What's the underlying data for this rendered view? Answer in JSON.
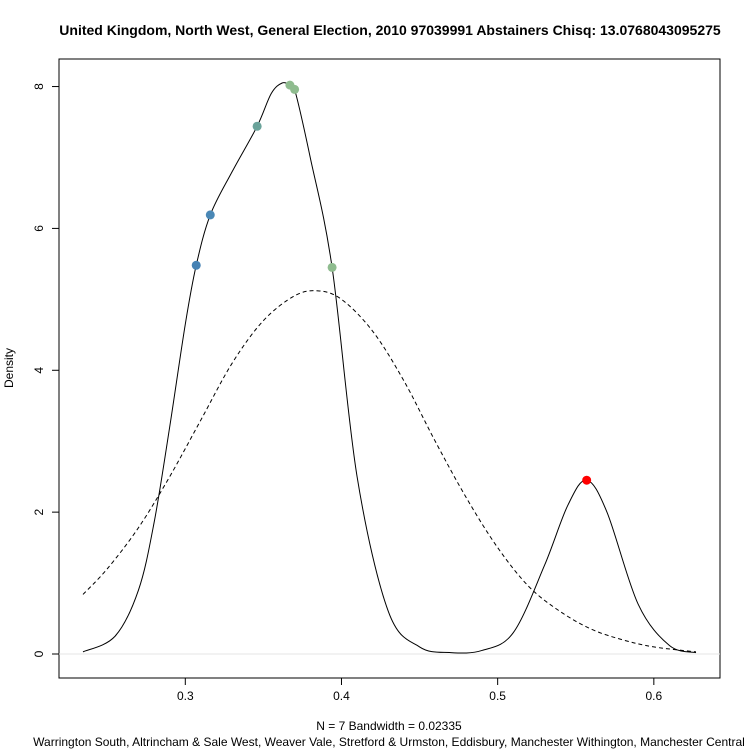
{
  "chart_data": {
    "type": "line",
    "title": "United Kingdom, North West, General Election, 2010 97039991 Abstainers Chisq: 13.0768043095275",
    "xlabel": "N = 7   Bandwidth = 0.02335",
    "subtitle": "Warrington South, Altrincham & Sale West, Weaver Vale, Stretford & Urmston, Eddisbury, Manchester Withington, Manchester Central",
    "ylabel": "Density",
    "xlim": [
      0.2345,
      0.627
    ],
    "ylim": [
      0,
      8.05
    ],
    "x_ticks": [
      "0.3",
      "0.4",
      "0.5",
      "0.6"
    ],
    "x_tick_values": [
      0.3,
      0.4,
      0.5,
      0.6
    ],
    "y_ticks": [
      "0",
      "2",
      "4",
      "6",
      "8"
    ],
    "y_tick_values": [
      0,
      2,
      4,
      6,
      8
    ],
    "grid": false,
    "series": [
      {
        "style": "solid",
        "x": [
          0.2345,
          0.255,
          0.27,
          0.28,
          0.29,
          0.3,
          0.307,
          0.316,
          0.33,
          0.346,
          0.355,
          0.362,
          0.367,
          0.37,
          0.38,
          0.394,
          0.41,
          0.43,
          0.45,
          0.47,
          0.49,
          0.51,
          0.53,
          0.545,
          0.557,
          0.57,
          0.59,
          0.61,
          0.627
        ],
        "y": [
          0.03,
          0.25,
          0.9,
          1.85,
          3.2,
          4.65,
          5.48,
          6.19,
          6.8,
          7.44,
          7.9,
          8.05,
          8.02,
          7.96,
          7.0,
          5.45,
          2.5,
          0.6,
          0.1,
          0.02,
          0.05,
          0.3,
          1.25,
          2.1,
          2.45,
          2.0,
          0.7,
          0.12,
          0.02
        ]
      },
      {
        "style": "dashed",
        "x": [
          0.2345,
          0.25,
          0.27,
          0.29,
          0.31,
          0.33,
          0.35,
          0.37,
          0.385,
          0.4,
          0.42,
          0.44,
          0.46,
          0.48,
          0.5,
          0.52,
          0.54,
          0.56,
          0.58,
          0.6,
          0.627
        ],
        "y": [
          0.84,
          1.2,
          1.78,
          2.5,
          3.3,
          4.1,
          4.7,
          5.05,
          5.12,
          5.0,
          4.55,
          3.85,
          3.0,
          2.2,
          1.5,
          0.95,
          0.6,
          0.35,
          0.2,
          0.1,
          0.03
        ]
      }
    ],
    "points": [
      {
        "x": 0.307,
        "y": 5.48,
        "color": "#4682b4"
      },
      {
        "x": 0.316,
        "y": 6.19,
        "color": "#4a88b6"
      },
      {
        "x": 0.346,
        "y": 7.44,
        "color": "#6aa39a"
      },
      {
        "x": 0.367,
        "y": 8.02,
        "color": "#8fbc8f"
      },
      {
        "x": 0.37,
        "y": 7.96,
        "color": "#8fbc8f"
      },
      {
        "x": 0.394,
        "y": 5.45,
        "color": "#8fbc8f"
      },
      {
        "x": 0.557,
        "y": 2.45,
        "color": "#ff0000"
      }
    ]
  }
}
